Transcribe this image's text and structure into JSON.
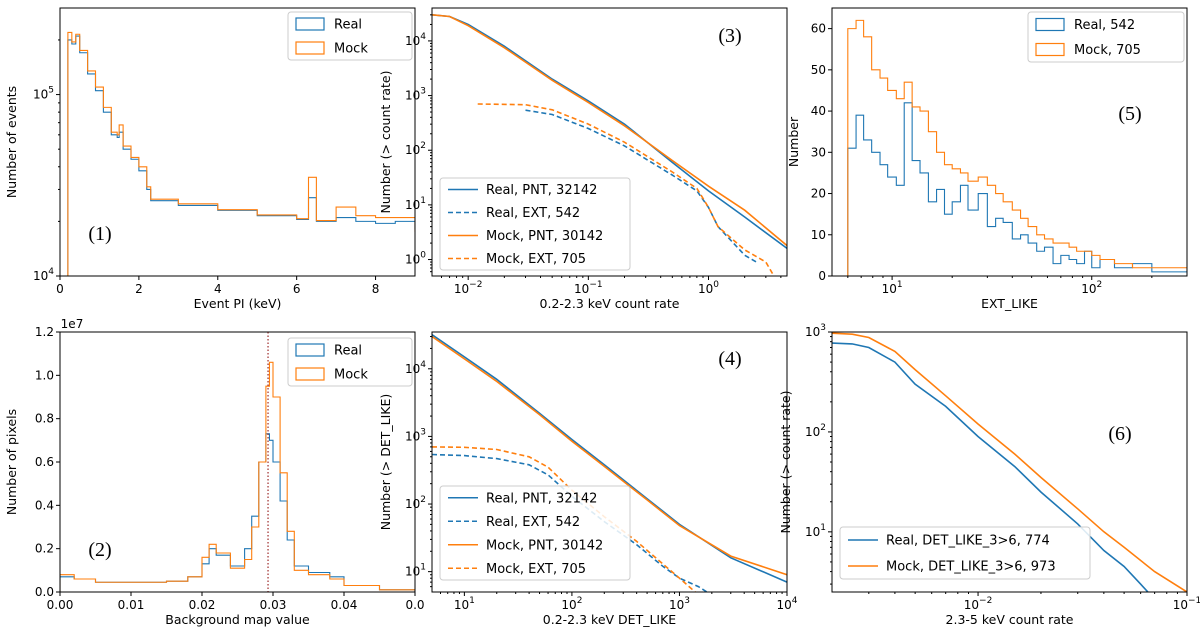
{
  "colors": {
    "real": "#1f77b4",
    "mock": "#ff7f0e"
  },
  "chart_data": [
    {
      "id": "p1",
      "type": "histogram",
      "panel_label": "(1)",
      "xlabel": "Event PI (keV)",
      "ylabel": "Number of events",
      "yscale": "log",
      "xlim": [
        0,
        9
      ],
      "ylim": [
        10000,
        300000
      ],
      "xticks": [
        "0",
        "2",
        "4",
        "6",
        "8"
      ],
      "yticks": [
        "10^4",
        "10^5"
      ],
      "legend": [
        "Real",
        "Mock"
      ],
      "legend_loc": "top-right",
      "series": [
        {
          "name": "Real",
          "x": [
            0.2,
            0.3,
            0.4,
            0.5,
            0.7,
            0.9,
            1.1,
            1.3,
            1.45,
            1.5,
            1.6,
            1.8,
            2.0,
            2.2,
            2.3,
            3.0,
            4.0,
            5.0,
            6.0,
            6.3,
            6.5,
            7.0,
            7.5,
            8.0,
            8.5,
            9.0
          ],
          "y": [
            200000,
            190000,
            210000,
            170000,
            130000,
            105000,
            80000,
            60000,
            58000,
            62000,
            50000,
            44000,
            38000,
            30000,
            26000,
            24500,
            23000,
            21500,
            20500,
            27000,
            20000,
            21000,
            20000,
            19500,
            20000,
            18000
          ]
        },
        {
          "name": "Mock",
          "x": [
            0.2,
            0.3,
            0.4,
            0.5,
            0.7,
            0.9,
            1.1,
            1.3,
            1.45,
            1.5,
            1.6,
            1.8,
            2.0,
            2.2,
            2.3,
            3.0,
            4.0,
            5.0,
            6.0,
            6.3,
            6.5,
            7.0,
            7.5,
            8.0,
            8.5,
            9.0
          ],
          "y": [
            220000,
            195000,
            215000,
            175000,
            135000,
            110000,
            85000,
            62000,
            60000,
            68000,
            52000,
            45000,
            40000,
            31000,
            26500,
            25000,
            23200,
            21700,
            20700,
            35000,
            20200,
            24000,
            21500,
            21000,
            21000,
            17500
          ]
        }
      ]
    },
    {
      "id": "p2",
      "type": "histogram",
      "panel_label": "(2)",
      "xlabel": "Background map value",
      "ylabel": "Number of pixels",
      "yscale": "linear",
      "offset_text": "1e7",
      "xlim": [
        0,
        0.05
      ],
      "ylim": [
        0,
        1.2
      ],
      "xticks": [
        "0.00",
        "0.01",
        "0.02",
        "0.03",
        "0.04",
        "0.0"
      ],
      "yticks": [
        "0.0",
        "0.2",
        "0.4",
        "0.6",
        "0.8",
        "1.0",
        "1.2"
      ],
      "legend": [
        "Real",
        "Mock"
      ],
      "legend_loc": "top-right",
      "vline_x": 0.0293,
      "series": [
        {
          "name": "Real",
          "x": [
            0,
            0.002,
            0.005,
            0.01,
            0.015,
            0.018,
            0.02,
            0.021,
            0.022,
            0.024,
            0.026,
            0.027,
            0.028,
            0.029,
            0.0295,
            0.03,
            0.031,
            0.032,
            0.033,
            0.035,
            0.038,
            0.04,
            0.045,
            0.05
          ],
          "y": [
            0.07,
            0.06,
            0.045,
            0.045,
            0.05,
            0.07,
            0.13,
            0.2,
            0.17,
            0.12,
            0.2,
            0.35,
            0.6,
            0.73,
            0.7,
            0.6,
            0.42,
            0.24,
            0.12,
            0.09,
            0.07,
            0.03,
            0.01,
            0
          ]
        },
        {
          "name": "Mock",
          "x": [
            0,
            0.002,
            0.005,
            0.01,
            0.015,
            0.018,
            0.02,
            0.021,
            0.022,
            0.024,
            0.026,
            0.027,
            0.028,
            0.029,
            0.0295,
            0.03,
            0.031,
            0.032,
            0.033,
            0.035,
            0.038,
            0.04,
            0.045,
            0.05
          ],
          "y": [
            0.08,
            0.06,
            0.045,
            0.045,
            0.05,
            0.07,
            0.16,
            0.22,
            0.18,
            0.11,
            0.15,
            0.3,
            0.6,
            0.95,
            1.06,
            0.9,
            0.55,
            0.28,
            0.1,
            0.08,
            0.06,
            0.03,
            0.01,
            0
          ]
        }
      ]
    },
    {
      "id": "p3",
      "type": "line",
      "panel_label": "(3)",
      "xlabel": "0.2-2.3 keV count rate",
      "ylabel": "Number (> count rate)",
      "xscale": "log",
      "yscale": "log",
      "xlim": [
        0.005,
        4.5
      ],
      "ylim": [
        0.5,
        40000
      ],
      "xticks": [
        "10^-2",
        "10^-1",
        "10^0"
      ],
      "yticks": [
        "10^0",
        "10^1",
        "10^2",
        "10^3",
        "10^4"
      ],
      "legend": [
        "Real, PNT, 32142",
        "Real, EXT, 542",
        "Mock, PNT, 30142",
        "Mock, EXT, 705"
      ],
      "legend_loc": "lower-left",
      "series": [
        {
          "name": "Real, PNT, 32142",
          "x": [
            0.005,
            0.007,
            0.01,
            0.02,
            0.05,
            0.1,
            0.2,
            0.5,
            1.0,
            2.0,
            4.5
          ],
          "y": [
            30000,
            28000,
            20000,
            8000,
            2000,
            800,
            300,
            60,
            18,
            6,
            1.6
          ]
        },
        {
          "name": "Real, EXT, 542",
          "x": [
            0.03,
            0.05,
            0.1,
            0.2,
            0.5,
            0.8,
            1.0,
            1.2,
            2.0,
            2.5
          ],
          "y": [
            540,
            450,
            250,
            120,
            35,
            18,
            9,
            4,
            1.2,
            0.9
          ]
        },
        {
          "name": "Mock, PNT, 30142",
          "x": [
            0.005,
            0.007,
            0.01,
            0.02,
            0.05,
            0.1,
            0.2,
            0.5,
            1.0,
            2.0,
            4.5
          ],
          "y": [
            30000,
            28000,
            19000,
            7500,
            1900,
            750,
            280,
            65,
            22,
            8,
            1.8
          ]
        },
        {
          "name": "Mock, EXT, 705",
          "x": [
            0.012,
            0.03,
            0.05,
            0.1,
            0.2,
            0.5,
            0.8,
            1.0,
            1.2,
            2.0,
            3.0,
            3.5
          ],
          "y": [
            700,
            680,
            550,
            300,
            140,
            40,
            20,
            9,
            4,
            1.5,
            0.9,
            0.5
          ]
        }
      ]
    },
    {
      "id": "p4",
      "type": "line",
      "panel_label": "(4)",
      "xlabel": "0.2-2.3 keV DET_LIKE",
      "ylabel": "Number (> DET_LIKE)",
      "xscale": "log",
      "yscale": "log",
      "xlim": [
        5,
        10000
      ],
      "ylim": [
        5,
        35000
      ],
      "xticks": [
        "10^1",
        "10^2",
        "10^3",
        "10^4"
      ],
      "yticks": [
        "10^1",
        "10^2",
        "10^3",
        "10^4"
      ],
      "legend": [
        "Real, PNT, 32142",
        "Real, EXT, 542",
        "Mock, PNT, 30142",
        "Mock, EXT, 705"
      ],
      "legend_loc": "lower-left",
      "series": [
        {
          "name": "Real, PNT, 32142",
          "x": [
            5,
            10,
            20,
            50,
            100,
            200,
            500,
            1000,
            3000,
            10000
          ],
          "y": [
            32000,
            15000,
            7000,
            2200,
            900,
            380,
            120,
            50,
            16,
            7
          ]
        },
        {
          "name": "Real, EXT, 542",
          "x": [
            5,
            10,
            20,
            40,
            60,
            100,
            200,
            400,
            700,
            1000,
            1500,
            1800
          ],
          "y": [
            540,
            520,
            470,
            380,
            270,
            130,
            55,
            25,
            12,
            8,
            6,
            5
          ]
        },
        {
          "name": "Mock, PNT, 30142",
          "x": [
            5,
            10,
            20,
            50,
            100,
            200,
            500,
            1000,
            3000,
            10000
          ],
          "y": [
            30000,
            14000,
            6500,
            2100,
            850,
            360,
            115,
            48,
            17,
            9
          ]
        },
        {
          "name": "Mock, EXT, 705",
          "x": [
            5,
            10,
            20,
            40,
            60,
            100,
            200,
            400,
            700,
            1000,
            1400
          ],
          "y": [
            700,
            690,
            640,
            500,
            350,
            160,
            65,
            28,
            13,
            8,
            5
          ]
        }
      ]
    },
    {
      "id": "p5",
      "type": "histogram",
      "panel_label": "(5)",
      "xlabel": "EXT_LIKE",
      "ylabel": "Number",
      "xscale": "log",
      "yscale": "linear",
      "xlim": [
        5,
        300
      ],
      "ylim": [
        0,
        65
      ],
      "xticks": [
        "10^1",
        "10^2"
      ],
      "yticks": [
        "0",
        "10",
        "20",
        "30",
        "40",
        "50",
        "60"
      ],
      "legend": [
        "Real, 542",
        "Mock, 705"
      ],
      "legend_loc": "top-right",
      "series": [
        {
          "name": "Real, 542",
          "x": [
            6,
            6.6,
            7.2,
            7.9,
            8.7,
            9.5,
            10.5,
            11.5,
            12.6,
            13.8,
            15.2,
            16.7,
            18.3,
            20,
            22,
            24,
            27,
            30,
            33,
            36,
            40,
            44,
            48,
            53,
            58,
            64,
            70,
            77,
            84,
            92,
            100,
            110,
            130,
            160,
            200,
            300
          ],
          "y": [
            31,
            39,
            33,
            30,
            27,
            24,
            22,
            42,
            28,
            25,
            18,
            21,
            15,
            18,
            22,
            16,
            20,
            12,
            14,
            13,
            9,
            10,
            8,
            6,
            7,
            3,
            5,
            4,
            3,
            6,
            2,
            4,
            2,
            3,
            1,
            1
          ]
        },
        {
          "name": "Mock, 705",
          "x": [
            6,
            6.6,
            7.2,
            7.9,
            8.7,
            9.5,
            10.5,
            11.5,
            12.6,
            13.8,
            15.2,
            16.7,
            18.3,
            20,
            22,
            24,
            27,
            30,
            33,
            36,
            40,
            44,
            48,
            53,
            58,
            64,
            70,
            77,
            84,
            92,
            100,
            110,
            130,
            160,
            200,
            300
          ],
          "y": [
            60,
            62,
            58,
            50,
            48,
            45,
            43,
            47,
            41,
            40,
            35,
            30,
            27,
            26,
            25,
            23,
            24,
            22,
            20,
            18,
            16,
            14,
            12,
            10,
            9,
            8,
            8,
            7,
            6,
            6,
            5,
            4,
            3,
            2,
            2,
            1
          ]
        }
      ]
    },
    {
      "id": "p6",
      "type": "line",
      "panel_label": "(6)",
      "xlabel": "2.3-5 keV count rate",
      "ylabel": "Number (> count rate)",
      "xscale": "log",
      "yscale": "log",
      "xlim": [
        0.002,
        0.1
      ],
      "ylim": [
        2.5,
        1000
      ],
      "xticks": [
        "10^-2",
        "10^-1"
      ],
      "yticks": [
        "10^1",
        "10^2",
        "10^3"
      ],
      "legend": [
        "Real, DET_LIKE_3>6, 774",
        "Mock, DET_LIKE_3>6, 973"
      ],
      "legend_loc": "lower-left",
      "series": [
        {
          "name": "Real, DET_LIKE_3>6, 774",
          "x": [
            0.002,
            0.0025,
            0.003,
            0.004,
            0.005,
            0.007,
            0.01,
            0.015,
            0.02,
            0.03,
            0.04,
            0.05,
            0.06,
            0.065
          ],
          "y": [
            774,
            760,
            700,
            500,
            300,
            180,
            90,
            45,
            25,
            12,
            6.5,
            4.5,
            3,
            2.5
          ]
        },
        {
          "name": "Mock, DET_LIKE_3>6, 973",
          "x": [
            0.002,
            0.0025,
            0.003,
            0.004,
            0.005,
            0.007,
            0.01,
            0.015,
            0.02,
            0.03,
            0.04,
            0.05,
            0.07,
            0.1
          ],
          "y": [
            973,
            950,
            880,
            640,
            420,
            230,
            120,
            60,
            35,
            17,
            10,
            7,
            4,
            2.5
          ]
        }
      ]
    }
  ]
}
